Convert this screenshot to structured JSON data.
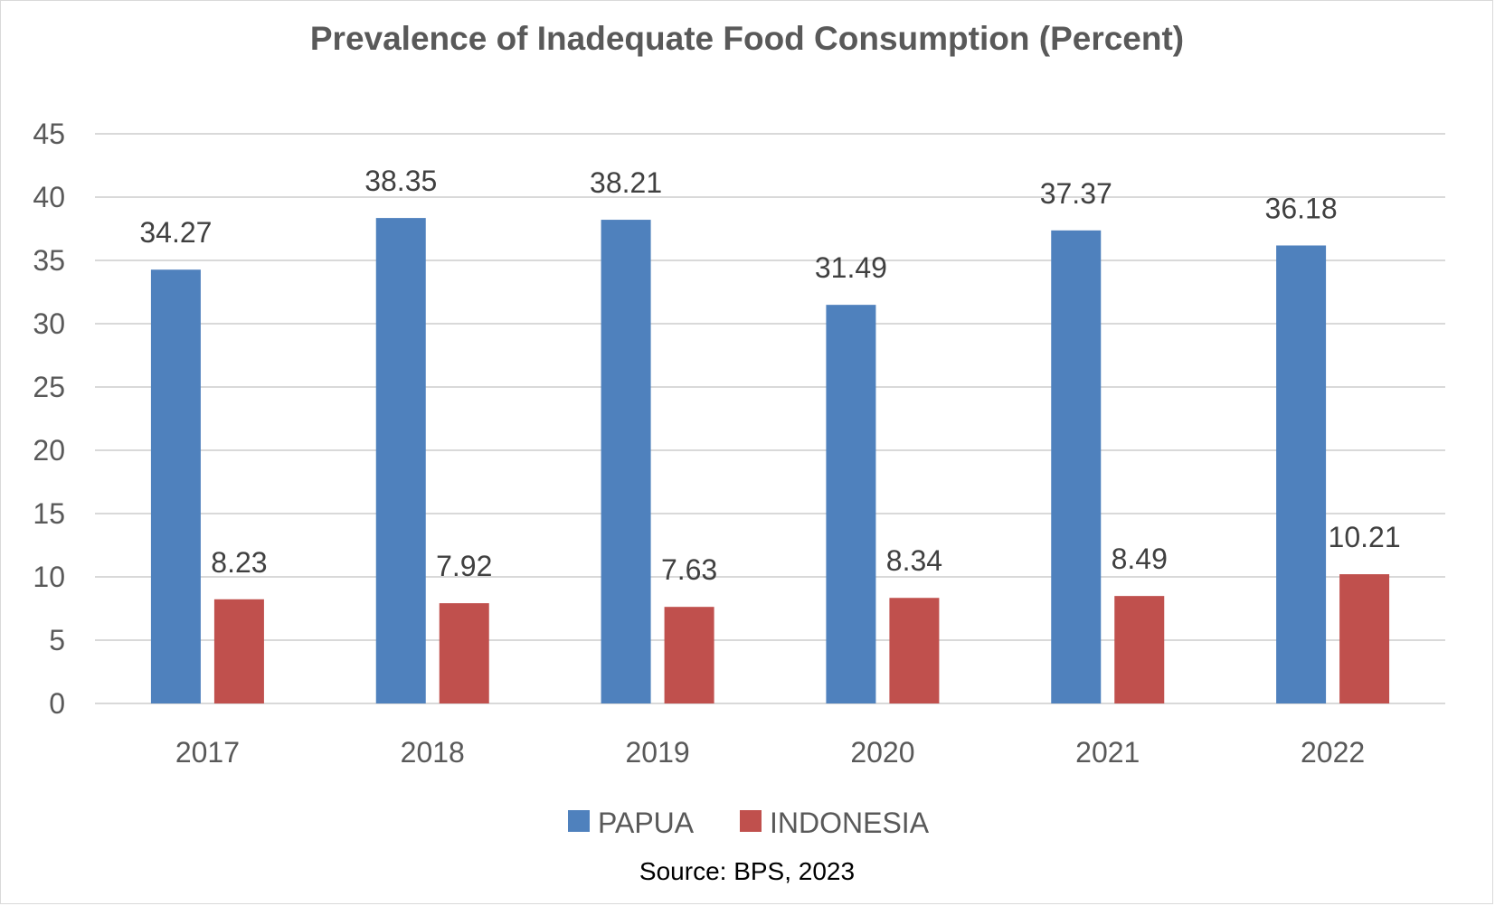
{
  "chart_data": {
    "type": "bar",
    "title": "Prevalence of Inadequate Food Consumption (Percent)",
    "xlabel": "",
    "ylabel": "",
    "categories": [
      "2017",
      "2018",
      "2019",
      "2020",
      "2021",
      "2022"
    ],
    "series": [
      {
        "name": "PAPUA",
        "color": "#4f81bd",
        "values": [
          34.27,
          38.35,
          38.21,
          31.49,
          37.37,
          36.18
        ]
      },
      {
        "name": "INDONESIA",
        "color": "#c0504d",
        "values": [
          8.23,
          7.92,
          7.63,
          8.34,
          8.49,
          10.21
        ]
      }
    ],
    "data_labels": [
      [
        "34.27",
        "38.35",
        "38.21",
        "31.49",
        "37.37",
        "36.18"
      ],
      [
        "8.23",
        "7.92",
        "7.63",
        "8.34",
        "8.49",
        "10.21"
      ]
    ],
    "ylim": [
      0,
      45
    ],
    "yticks": [
      "0",
      "5",
      "10",
      "15",
      "20",
      "25",
      "30",
      "35",
      "40",
      "45"
    ],
    "grid": true,
    "legend_position": "bottom",
    "source": "Source: BPS, 2023"
  }
}
